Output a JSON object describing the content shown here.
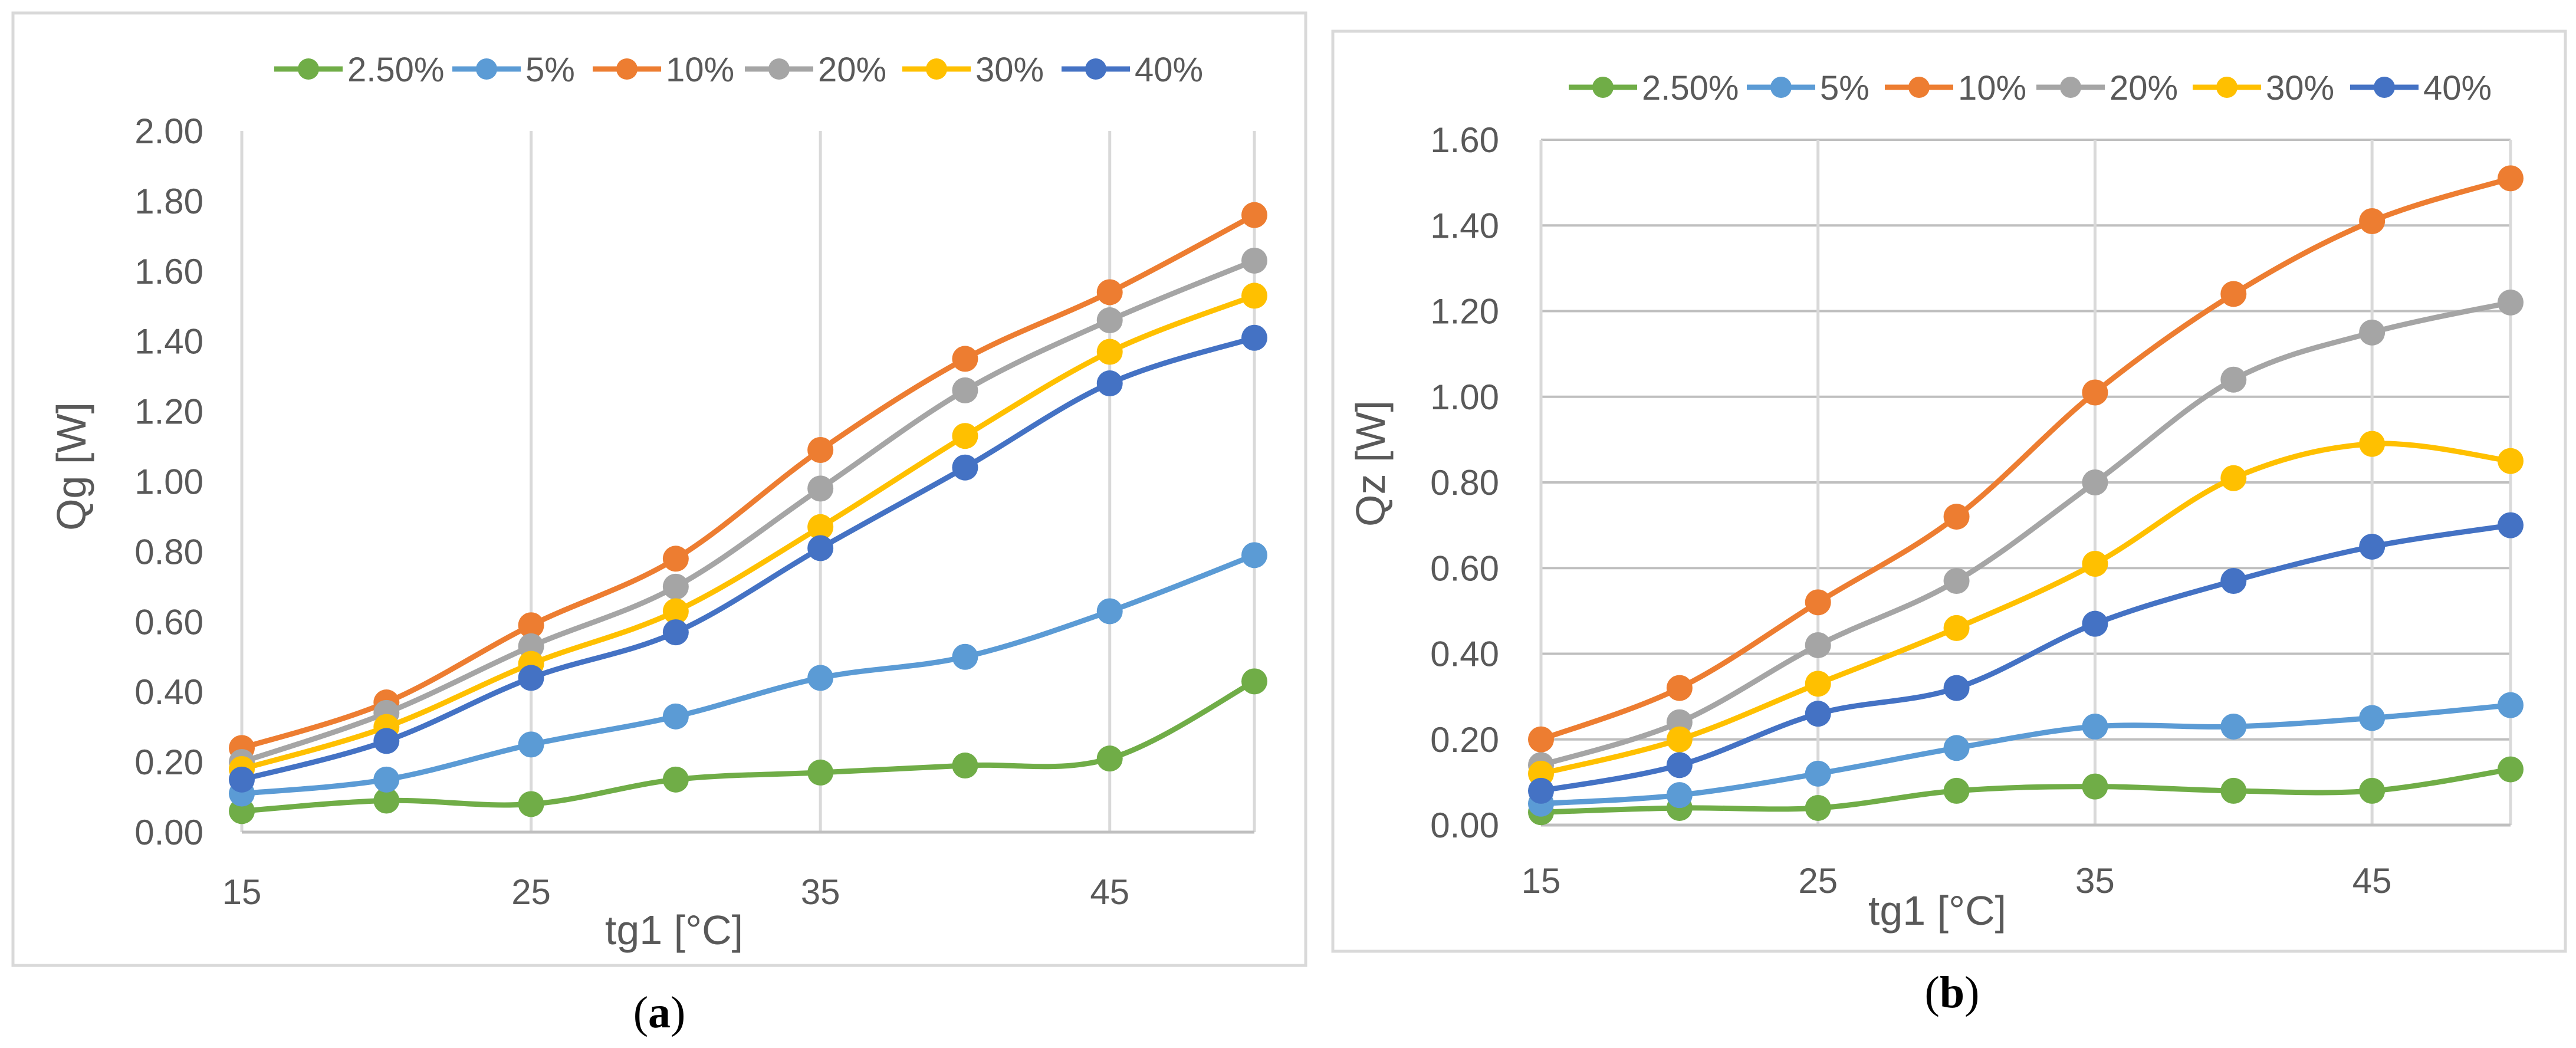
{
  "chart_data": [
    {
      "type": "line",
      "panel_label": "a",
      "xlabel": "tg1 [°C]",
      "ylabel": "Qg [W]",
      "xlim": [
        15,
        50
      ],
      "ylim": [
        0,
        2.0
      ],
      "x_ticks": [
        "15",
        "25",
        "35",
        "45"
      ],
      "y_ticks": [
        "0.00",
        "0.20",
        "0.40",
        "0.60",
        "0.80",
        "1.00",
        "1.20",
        "1.40",
        "1.60",
        "1.80",
        "2.00"
      ],
      "grid": "vertical",
      "legend": "top",
      "x": [
        15,
        20,
        25,
        30,
        35,
        40,
        45,
        50
      ],
      "series": [
        {
          "name": "2.50%",
          "color": "#70AD47",
          "values": [
            0.06,
            0.09,
            0.08,
            0.15,
            0.17,
            0.19,
            0.21,
            0.43
          ]
        },
        {
          "name": "5%",
          "color": "#5B9BD5",
          "values": [
            0.11,
            0.15,
            0.25,
            0.33,
            0.44,
            0.5,
            0.63,
            0.79
          ]
        },
        {
          "name": "10%",
          "color": "#ED7D31",
          "values": [
            0.24,
            0.37,
            0.59,
            0.78,
            1.09,
            1.35,
            1.54,
            1.76
          ]
        },
        {
          "name": "20%",
          "color": "#A5A5A5",
          "values": [
            0.2,
            0.34,
            0.53,
            0.7,
            0.98,
            1.26,
            1.46,
            1.63
          ]
        },
        {
          "name": "30%",
          "color": "#FFC000",
          "values": [
            0.18,
            0.3,
            0.48,
            0.63,
            0.87,
            1.13,
            1.37,
            1.53
          ]
        },
        {
          "name": "40%",
          "color": "#4472C4",
          "values": [
            0.15,
            0.26,
            0.44,
            0.57,
            0.81,
            1.04,
            1.28,
            1.41
          ]
        }
      ]
    },
    {
      "type": "line",
      "panel_label": "b",
      "xlabel": "tg1 [°C]",
      "ylabel": "Qz [W]",
      "xlim": [
        15,
        50
      ],
      "ylim": [
        0,
        1.6
      ],
      "x_ticks": [
        "15",
        "25",
        "35",
        "45"
      ],
      "y_ticks": [
        "0.00",
        "0.20",
        "0.40",
        "0.60",
        "0.80",
        "1.00",
        "1.20",
        "1.40",
        "1.60"
      ],
      "grid": "both",
      "legend": "top",
      "x": [
        15,
        20,
        25,
        30,
        35,
        40,
        45,
        50
      ],
      "series": [
        {
          "name": "2.50%",
          "color": "#70AD47",
          "values": [
            0.03,
            0.04,
            0.04,
            0.08,
            0.09,
            0.08,
            0.08,
            0.13
          ]
        },
        {
          "name": "5%",
          "color": "#5B9BD5",
          "values": [
            0.05,
            0.07,
            0.12,
            0.18,
            0.23,
            0.23,
            0.25,
            0.28
          ]
        },
        {
          "name": "10%",
          "color": "#ED7D31",
          "values": [
            0.2,
            0.32,
            0.52,
            0.72,
            1.01,
            1.24,
            1.41,
            1.51
          ]
        },
        {
          "name": "20%",
          "color": "#A5A5A5",
          "values": [
            0.14,
            0.24,
            0.42,
            0.57,
            0.8,
            1.04,
            1.15,
            1.22
          ]
        },
        {
          "name": "30%",
          "color": "#FFC000",
          "values": [
            0.12,
            0.2,
            0.33,
            0.46,
            0.61,
            0.81,
            0.89,
            0.85
          ]
        },
        {
          "name": "40%",
          "color": "#4472C4",
          "values": [
            0.08,
            0.14,
            0.26,
            0.32,
            0.47,
            0.57,
            0.65,
            0.7
          ]
        }
      ]
    }
  ]
}
